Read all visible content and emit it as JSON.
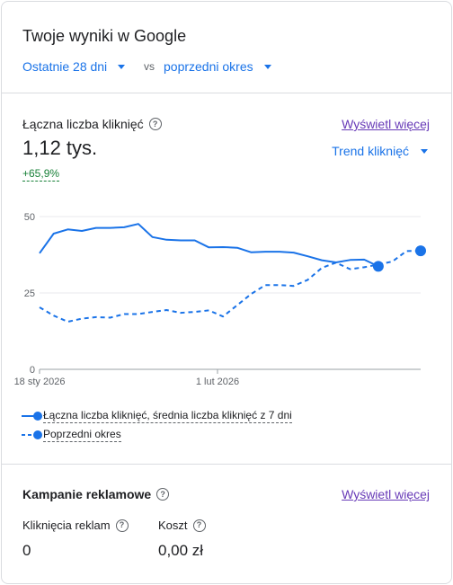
{
  "header": {
    "title": "Twoje wyniki w Google",
    "period_label": "Ostatnie 28 dni",
    "vs_label": "vs",
    "compare_label": "poprzedni okres"
  },
  "metric": {
    "label": "Łączna liczba kliknięć",
    "value": "1,12 tys.",
    "change": "+65,9%",
    "view_more": "Wyświetl więcej",
    "trend_selector": "Trend kliknięć"
  },
  "chart_data": {
    "type": "line",
    "y_ticks": [
      "0",
      "25",
      "50"
    ],
    "ylim": [
      0,
      50
    ],
    "x_ticks": [
      "18 sty 2026",
      "1 lut 2026"
    ],
    "grid": true,
    "series": [
      {
        "name": "Łączna liczba kliknięć, średnia liczba kliknięć z 7 dni",
        "style": "solid",
        "color": "#1a73e8",
        "values": [
          38.0,
          44.4,
          45.8,
          45.3,
          46.3,
          46.3,
          46.5,
          47.6,
          43.3,
          42.4,
          42.2,
          42.2,
          39.9,
          40.0,
          39.8,
          38.3,
          38.5,
          38.5,
          38.2,
          37.0,
          35.7,
          35.0,
          35.8,
          35.9,
          33.7
        ]
      },
      {
        "name": "Poprzedni okres",
        "style": "dashed",
        "color": "#1a73e8",
        "values": [
          20.3,
          17.6,
          15.6,
          16.6,
          17.1,
          16.9,
          18.1,
          18.1,
          18.8,
          19.4,
          18.5,
          18.8,
          19.3,
          17.3,
          21.0,
          24.7,
          27.6,
          27.6,
          27.3,
          29.3,
          33.2,
          34.9,
          32.8,
          33.4,
          34.3,
          35.3,
          38.7,
          38.8
        ]
      }
    ]
  },
  "campaigns": {
    "title": "Kampanie reklamowe",
    "view_more": "Wyświetl więcej",
    "clicks_label": "Kliknięcia reklam",
    "clicks_value": "0",
    "cost_label": "Koszt",
    "cost_value": "0,00 zł"
  },
  "icons": {
    "help": "help-circle-icon",
    "caret": "caret-down-icon"
  },
  "colors": {
    "accent": "#1a73e8",
    "link": "#673ab7",
    "positive": "#188038",
    "border": "#dadce0"
  }
}
